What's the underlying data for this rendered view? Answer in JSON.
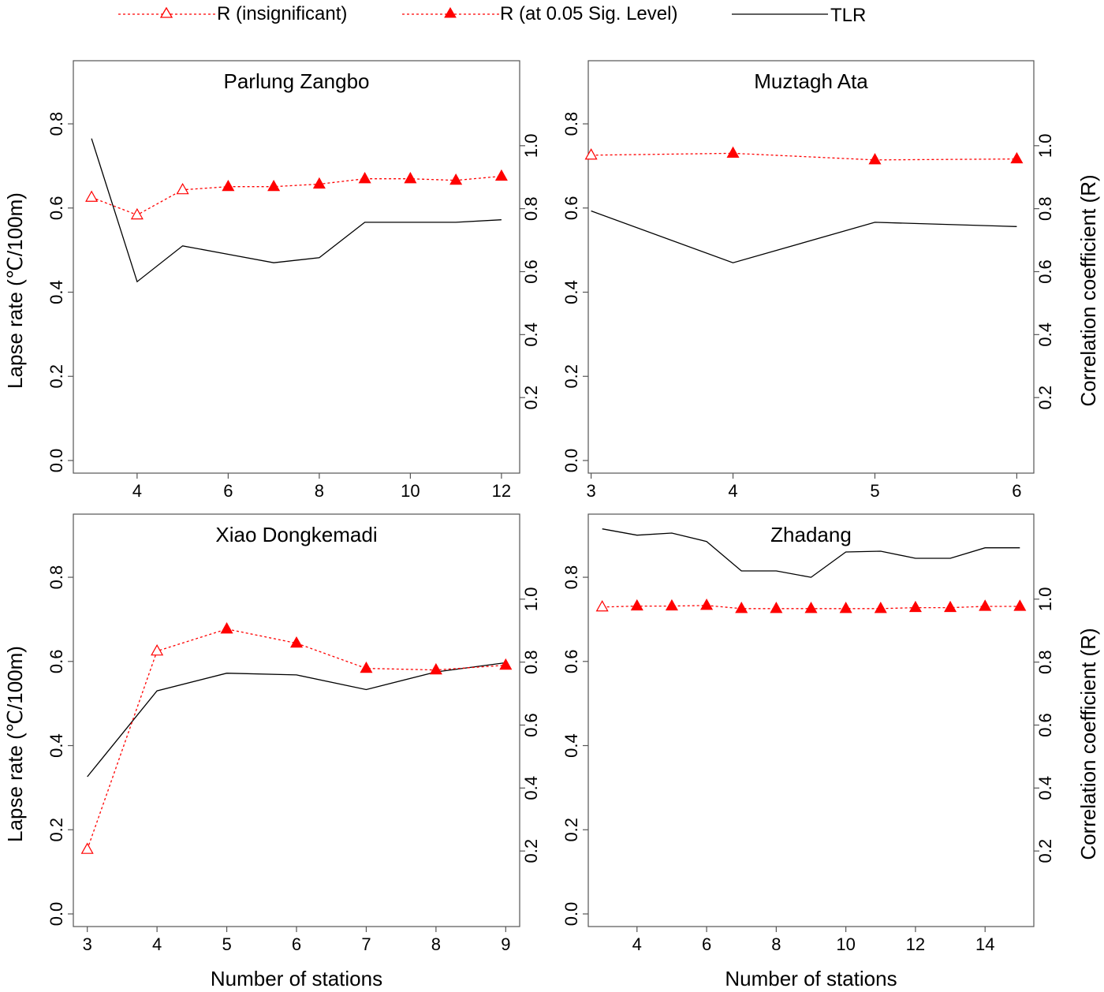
{
  "legend": {
    "r_insignificant": "R (insignificant)",
    "r_significant": "R (at 0.05 Sig. Level)",
    "tlr": "TLR"
  },
  "colors": {
    "r_series": "#ff0000",
    "tlr_series": "#000000",
    "frame": "#555555"
  },
  "left_axis_ticks": [
    "0.0",
    "0.2",
    "0.4",
    "0.6",
    "0.8"
  ],
  "right_axis_ticks": [
    "0.2",
    "0.4",
    "0.6",
    "0.8",
    "1.0"
  ],
  "chart_data": [
    {
      "type": "line",
      "title": "Parlung Zangbo",
      "xlabel": "",
      "ylabel": "Lapse rate (℃/100m)",
      "y2label": "",
      "xlim": [
        2.6,
        12.4
      ],
      "ylim": [
        -0.03,
        0.95
      ],
      "y2lim": [
        -0.04,
        1.27
      ],
      "xticks": [
        4,
        6,
        8,
        10,
        12
      ],
      "yticks": [
        0.0,
        0.2,
        0.4,
        0.6,
        0.8
      ],
      "y2ticks": [
        0.2,
        0.4,
        0.6,
        0.8,
        1.0
      ],
      "x": [
        3,
        4,
        5,
        6,
        7,
        8,
        9,
        10,
        11,
        12
      ],
      "tlr": [
        0.765,
        0.425,
        0.51,
        0.49,
        0.47,
        0.482,
        0.566,
        0.566,
        0.566,
        0.572
      ],
      "r": [
        0.836,
        0.78,
        0.86,
        0.87,
        0.87,
        0.878,
        0.895,
        0.895,
        0.89,
        0.903
      ],
      "r_significant": [
        false,
        false,
        false,
        true,
        true,
        true,
        true,
        true,
        true,
        true
      ]
    },
    {
      "type": "line",
      "title": "Muztagh Ata",
      "xlabel": "",
      "ylabel": "",
      "y2label": "Correlation coefficient (R)",
      "xlim": [
        2.98,
        6.12
      ],
      "ylim": [
        -0.03,
        0.95
      ],
      "y2lim": [
        -0.04,
        1.27
      ],
      "xticks": [
        3,
        4,
        5,
        6
      ],
      "yticks": [
        0.0,
        0.2,
        0.4,
        0.6,
        0.8
      ],
      "y2ticks": [
        0.2,
        0.4,
        0.6,
        0.8,
        1.0
      ],
      "x": [
        3,
        4,
        5,
        6
      ],
      "tlr": [
        0.593,
        0.47,
        0.566,
        0.556
      ],
      "r": [
        0.97,
        0.976,
        0.955,
        0.958
      ],
      "r_significant": [
        false,
        true,
        true,
        true
      ]
    },
    {
      "type": "line",
      "title": "Xiao Dongkemadi",
      "xlabel": "Number of stations",
      "ylabel": "Lapse rate (℃/100m)",
      "y2label": "",
      "xlim": [
        2.8,
        9.2
      ],
      "ylim": [
        -0.03,
        0.95
      ],
      "y2lim": [
        -0.04,
        1.27
      ],
      "xticks": [
        3,
        4,
        5,
        6,
        7,
        8,
        9
      ],
      "yticks": [
        0.0,
        0.2,
        0.4,
        0.6,
        0.8
      ],
      "y2ticks": [
        0.2,
        0.4,
        0.6,
        0.8,
        1.0
      ],
      "x": [
        3,
        4,
        5,
        6,
        7,
        8,
        9
      ],
      "tlr": [
        0.326,
        0.53,
        0.572,
        0.568,
        0.533,
        0.575,
        0.597
      ],
      "r": [
        0.205,
        0.835,
        0.905,
        0.86,
        0.78,
        0.775,
        0.79
      ],
      "r_significant": [
        false,
        false,
        true,
        true,
        true,
        true,
        true
      ]
    },
    {
      "type": "line",
      "title": "Zhadang",
      "xlabel": "Number of stations",
      "ylabel": "",
      "y2label": "Correlation coefficient (R)",
      "xlim": [
        2.6,
        15.4
      ],
      "ylim": [
        -0.03,
        0.95
      ],
      "y2lim": [
        -0.04,
        1.27
      ],
      "xticks": [
        4,
        6,
        8,
        10,
        12,
        14
      ],
      "yticks": [
        0.0,
        0.2,
        0.4,
        0.6,
        0.8
      ],
      "y2ticks": [
        0.2,
        0.4,
        0.6,
        0.8,
        1.0
      ],
      "x": [
        3,
        4,
        5,
        6,
        7,
        8,
        9,
        10,
        11,
        12,
        13,
        14,
        15
      ],
      "tlr": [
        0.915,
        0.9,
        0.905,
        0.885,
        0.815,
        0.815,
        0.8,
        0.86,
        0.862,
        0.845,
        0.845,
        0.87,
        0.87
      ],
      "r": [
        0.975,
        0.978,
        0.978,
        0.98,
        0.97,
        0.97,
        0.97,
        0.97,
        0.97,
        0.973,
        0.973,
        0.977,
        0.977
      ],
      "r_significant": [
        false,
        true,
        true,
        true,
        true,
        true,
        true,
        true,
        true,
        true,
        true,
        true,
        true
      ]
    }
  ]
}
